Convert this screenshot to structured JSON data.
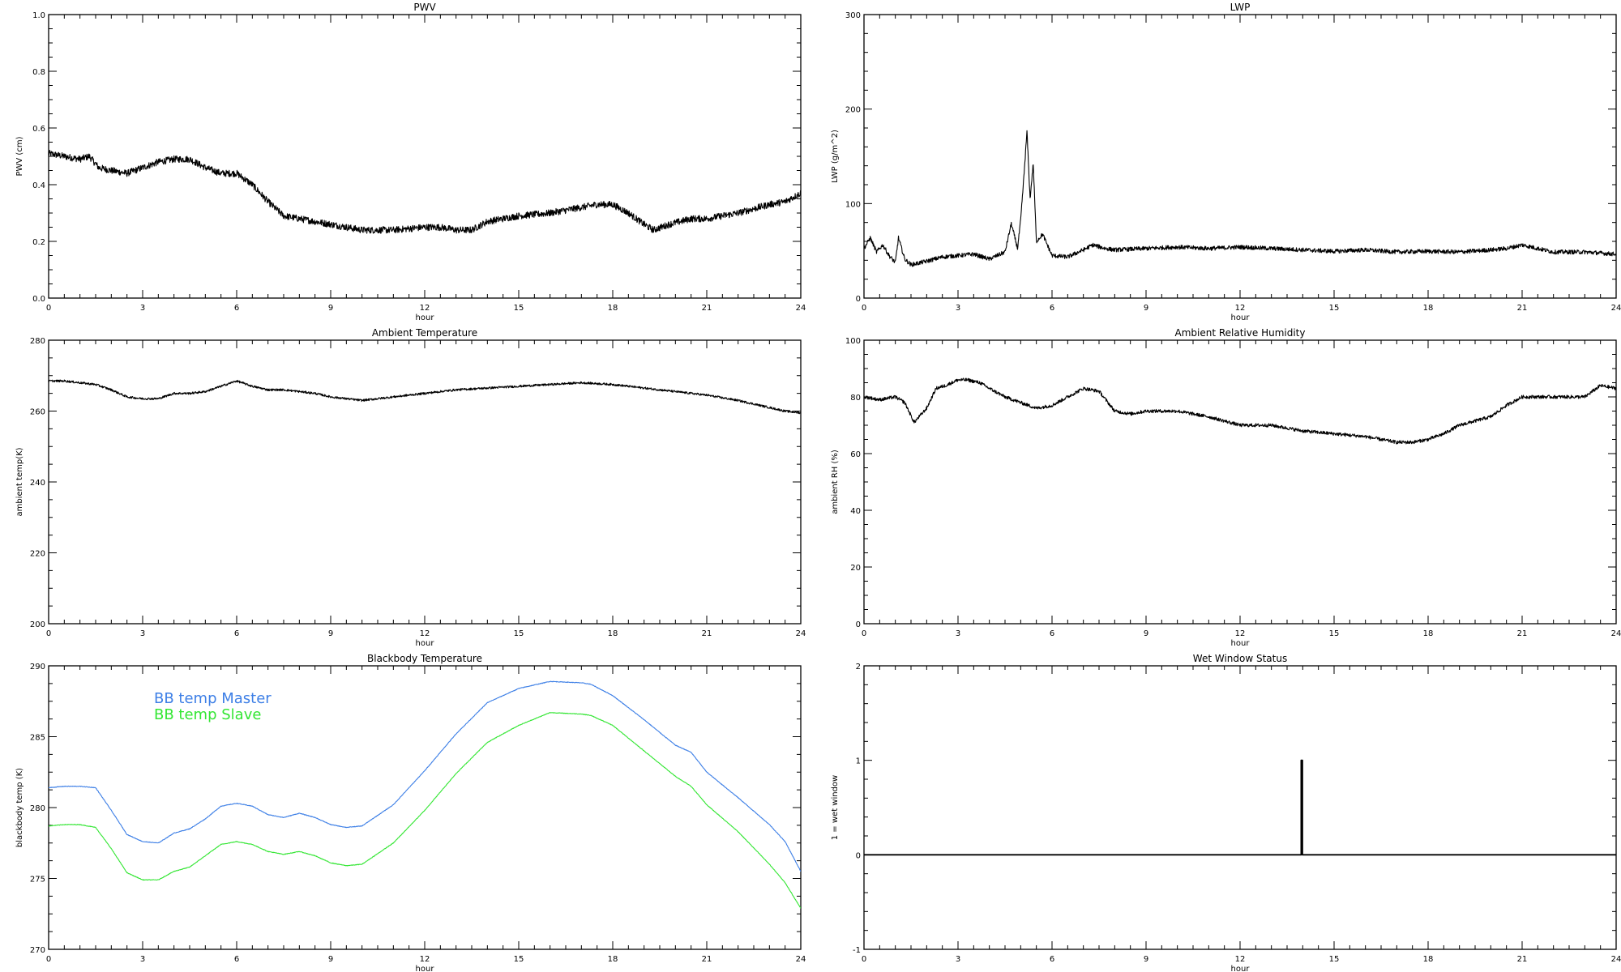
{
  "chart_data": [
    {
      "type": "line",
      "title": "PWV",
      "xlabel": "hour",
      "ylabel": "PWV (cm)",
      "xlim": [
        0,
        24
      ],
      "ylim": [
        0,
        1.0
      ],
      "xticks": [
        "0",
        "3",
        "6",
        "9",
        "12",
        "15",
        "18",
        "21",
        "24"
      ],
      "yticks": [
        "0.0",
        "0.2",
        "0.4",
        "0.6",
        "0.8",
        "1.0"
      ],
      "grid": false,
      "noise": 0.012,
      "series": [
        {
          "color": "#000000",
          "x": [
            0,
            0.5,
            1,
            1.3,
            1.6,
            2,
            2.5,
            3,
            3.5,
            4,
            4.5,
            5,
            5.5,
            6,
            6.5,
            7,
            7.5,
            8,
            9,
            10,
            11,
            12,
            12.5,
            13,
            13.5,
            14,
            15,
            16,
            17,
            17.5,
            18,
            18.5,
            19,
            19.3,
            19.8,
            20.5,
            21,
            22,
            23,
            23.5,
            24
          ],
          "y": [
            0.51,
            0.5,
            0.49,
            0.5,
            0.46,
            0.45,
            0.44,
            0.46,
            0.48,
            0.49,
            0.49,
            0.46,
            0.44,
            0.44,
            0.4,
            0.34,
            0.29,
            0.28,
            0.26,
            0.24,
            0.24,
            0.25,
            0.25,
            0.24,
            0.24,
            0.27,
            0.29,
            0.3,
            0.32,
            0.33,
            0.33,
            0.3,
            0.26,
            0.24,
            0.26,
            0.28,
            0.28,
            0.3,
            0.33,
            0.34,
            0.37
          ]
        }
      ]
    },
    {
      "type": "line",
      "title": "LWP",
      "xlabel": "hour",
      "ylabel": "LWP (g/m^2)",
      "xlim": [
        0,
        24
      ],
      "ylim": [
        -50,
        350
      ],
      "xticks": [
        "0",
        "3",
        "6",
        "9",
        "12",
        "15",
        "18",
        "21",
        "24"
      ],
      "yticks": [
        "0",
        "100",
        "200",
        "300"
      ],
      "grid": false,
      "noise": 3,
      "series": [
        {
          "color": "#000000",
          "x": [
            0,
            0.2,
            0.4,
            0.6,
            0.8,
            1.0,
            1.1,
            1.3,
            1.5,
            2,
            2.5,
            3,
            3.5,
            4,
            4.5,
            4.7,
            4.9,
            5.0,
            5.1,
            5.2,
            5.3,
            5.4,
            5.5,
            5.7,
            6,
            6.5,
            7,
            7.3,
            7.7,
            8,
            9,
            10,
            11,
            12,
            13,
            14,
            15,
            16,
            17,
            18,
            19,
            20,
            20.5,
            21,
            22,
            23,
            24
          ],
          "y": [
            20,
            35,
            15,
            25,
            10,
            0,
            35,
            5,
            -3,
            2,
            8,
            10,
            12,
            5,
            15,
            55,
            20,
            60,
            120,
            185,
            90,
            140,
            30,
            40,
            10,
            8,
            18,
            25,
            20,
            18,
            20,
            22,
            20,
            22,
            20,
            18,
            16,
            18,
            15,
            16,
            15,
            18,
            20,
            25,
            15,
            15,
            12
          ]
        }
      ]
    },
    {
      "type": "line",
      "title": "Ambient Temperature",
      "xlabel": "hour",
      "ylabel": "ambient temp(K)",
      "xlim": [
        0,
        24
      ],
      "ylim": [
        200,
        280
      ],
      "xticks": [
        "0",
        "3",
        "6",
        "9",
        "12",
        "15",
        "18",
        "21",
        "24"
      ],
      "yticks": [
        "200",
        "220",
        "240",
        "260",
        "280"
      ],
      "grid": false,
      "noise": 0.3,
      "series": [
        {
          "color": "#000000",
          "x": [
            0,
            0.5,
            1,
            1.5,
            2,
            2.5,
            3,
            3.5,
            4,
            4.5,
            5,
            5.5,
            6,
            6.5,
            7,
            7.5,
            8,
            8.5,
            9,
            9.5,
            10,
            10.5,
            11,
            11.5,
            12,
            12.5,
            13,
            14,
            15,
            16,
            17,
            18,
            19,
            20,
            21,
            22,
            23,
            23.5,
            24
          ],
          "y": [
            268.5,
            268.5,
            268,
            267.5,
            266,
            264,
            263.5,
            263.5,
            265,
            265,
            265.5,
            267,
            268.5,
            267,
            266,
            266,
            265.5,
            265,
            264,
            263.5,
            263,
            263.5,
            264,
            264.5,
            265,
            265.5,
            266,
            266.5,
            267,
            267.5,
            268,
            267.5,
            266.5,
            265.5,
            264.5,
            263,
            261,
            260,
            259.5
          ]
        }
      ]
    },
    {
      "type": "line",
      "title": "Ambient Relative Humidity",
      "xlabel": "hour",
      "ylabel": "ambient RH (%)",
      "xlim": [
        0,
        24
      ],
      "ylim": [
        0,
        100
      ],
      "xticks": [
        "0",
        "3",
        "6",
        "9",
        "12",
        "15",
        "18",
        "21",
        "24"
      ],
      "yticks": [
        "0",
        "20",
        "40",
        "60",
        "80",
        "100"
      ],
      "grid": false,
      "noise": 0.6,
      "series": [
        {
          "color": "#000000",
          "x": [
            0,
            0.5,
            1,
            1.3,
            1.6,
            2,
            2.3,
            2.6,
            3,
            3.3,
            3.7,
            4,
            4.5,
            5,
            5.5,
            6,
            6.5,
            7,
            7.5,
            8,
            8.5,
            9,
            10,
            11,
            12,
            13,
            14,
            15,
            16,
            17,
            17.5,
            18,
            18.5,
            19,
            20,
            20.5,
            21,
            22,
            23,
            23.5,
            24
          ],
          "y": [
            80,
            79,
            80,
            78,
            71,
            76,
            83,
            84,
            86,
            86,
            85,
            83,
            80,
            78,
            76,
            77,
            80,
            83,
            82,
            75,
            74,
            75,
            75,
            73,
            70,
            70,
            68,
            67,
            66,
            64,
            64,
            65,
            67,
            70,
            73,
            77,
            80,
            80,
            80,
            84,
            83
          ]
        }
      ]
    },
    {
      "type": "line",
      "title": "Blackbody Temperature",
      "xlabel": "hour",
      "ylabel": "blackbody temp (K)",
      "xlim": [
        0,
        24
      ],
      "ylim": [
        270,
        290
      ],
      "xticks": [
        "0",
        "3",
        "6",
        "9",
        "12",
        "15",
        "18",
        "21",
        "24"
      ],
      "yticks": [
        "270",
        "275",
        "280",
        "285",
        "290"
      ],
      "grid": false,
      "legend": "top-left",
      "noise": 0.02,
      "series": [
        {
          "name": "BB temp Master",
          "color": "#3d7fe6",
          "x": [
            0,
            0.5,
            1,
            1.5,
            2,
            2.5,
            3,
            3.5,
            4,
            4.5,
            5,
            5.5,
            6,
            6.5,
            7,
            7.5,
            8,
            8.5,
            9,
            9.5,
            10,
            11,
            12,
            13,
            14,
            15,
            16,
            17,
            17.3,
            18,
            19,
            20,
            20.5,
            21,
            22,
            23,
            23.5,
            24
          ],
          "y": [
            281.4,
            281.5,
            281.5,
            281.4,
            279.8,
            278.1,
            277.6,
            277.5,
            278.2,
            278.5,
            279.2,
            280.1,
            280.3,
            280.1,
            279.5,
            279.3,
            279.6,
            279.3,
            278.8,
            278.6,
            278.7,
            280.2,
            282.6,
            285.2,
            287.4,
            288.4,
            288.9,
            288.8,
            288.7,
            287.9,
            286.2,
            284.4,
            283.9,
            282.5,
            280.7,
            278.8,
            277.6,
            275.5
          ]
        },
        {
          "name": "BB temp Slave",
          "color": "#33e633",
          "x": [
            0,
            0.5,
            1,
            1.5,
            2,
            2.5,
            3,
            3.5,
            4,
            4.5,
            5,
            5.5,
            6,
            6.5,
            7,
            7.5,
            8,
            8.5,
            9,
            9.5,
            10,
            11,
            12,
            13,
            14,
            15,
            16,
            17,
            17.3,
            18,
            19,
            20,
            20.5,
            21,
            22,
            23,
            23.5,
            24
          ],
          "y": [
            278.7,
            278.8,
            278.8,
            278.6,
            277.1,
            275.4,
            274.9,
            274.9,
            275.5,
            275.8,
            276.6,
            277.4,
            277.6,
            277.4,
            276.9,
            276.7,
            276.9,
            276.6,
            276.1,
            275.9,
            276.0,
            277.5,
            279.8,
            282.4,
            284.6,
            285.8,
            286.7,
            286.6,
            286.5,
            285.8,
            284.0,
            282.2,
            281.5,
            280.2,
            278.3,
            276.0,
            274.7,
            272.9
          ]
        }
      ]
    },
    {
      "type": "line",
      "title": "Wet Window Status",
      "xlabel": "hour",
      "ylabel": "1 = wet window",
      "xlim": [
        0,
        24
      ],
      "ylim": [
        -1,
        2
      ],
      "xticks": [
        "0",
        "3",
        "6",
        "9",
        "12",
        "15",
        "18",
        "21",
        "24"
      ],
      "yticks": [
        "-1",
        "0",
        "1",
        "2"
      ],
      "grid": false,
      "noise": 0,
      "series": [
        {
          "color": "#000000",
          "x": [
            0,
            13.95,
            13.95,
            13.99,
            13.99,
            24
          ],
          "y": [
            0,
            0,
            1,
            1,
            0,
            0
          ]
        }
      ]
    }
  ]
}
